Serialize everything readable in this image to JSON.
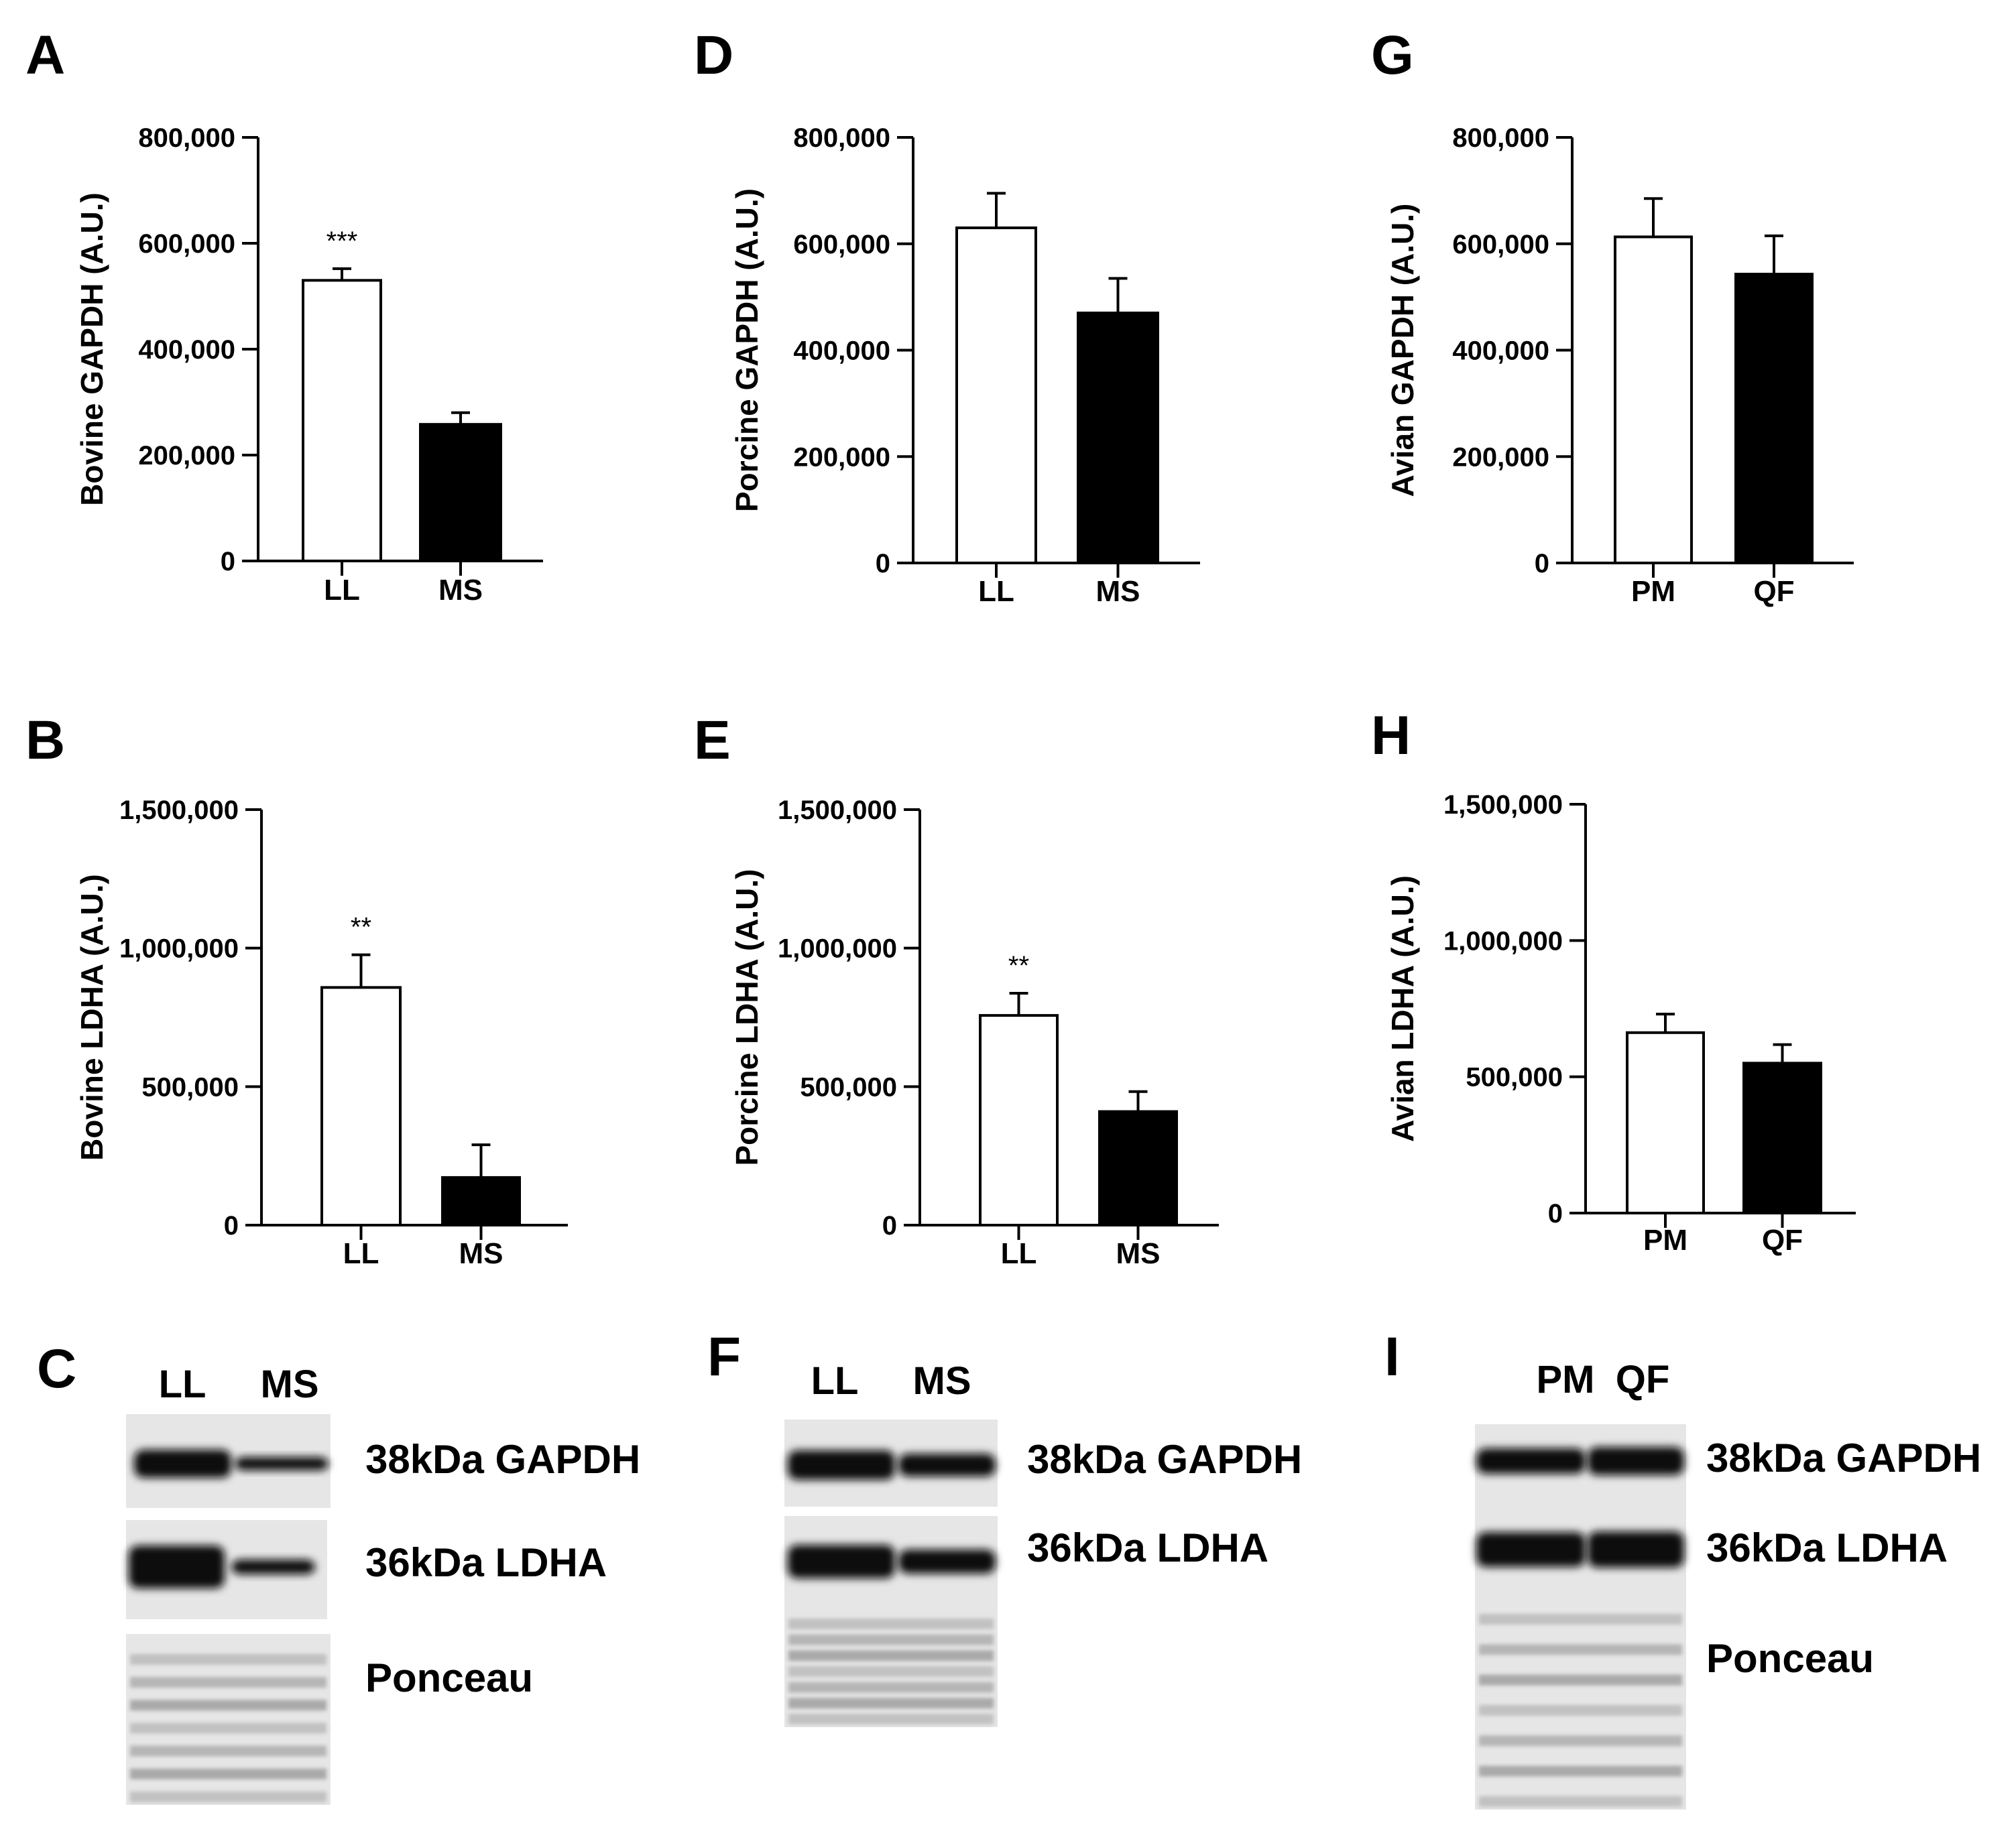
{
  "colors": {
    "control_bar": "#ffffff",
    "treatment_bar": "#000000",
    "axis": "#000000",
    "blot_bg": "#e6e6e6",
    "band": "#111111"
  },
  "chart_data": [
    {
      "panel": "A",
      "type": "bar",
      "categories": [
        "LL",
        "MS"
      ],
      "values": [
        530000,
        258000
      ],
      "errors": [
        22000,
        22000
      ],
      "significance": [
        "***",
        ""
      ],
      "ylabel": "Bovine GAPDH (A.U.)",
      "ylim": [
        0,
        800000
      ],
      "yticks": [
        0,
        200000,
        400000,
        600000,
        800000
      ],
      "ytick_labels": [
        "0",
        "200,000",
        "400,000",
        "600,000",
        "800,000"
      ]
    },
    {
      "panel": "D",
      "type": "bar",
      "categories": [
        "LL",
        "MS"
      ],
      "values": [
        630000,
        470000
      ],
      "errors": [
        65000,
        65000
      ],
      "significance": [
        "",
        ""
      ],
      "ylabel": "Porcine GAPDH (A.U.)",
      "ylim": [
        0,
        800000
      ],
      "yticks": [
        0,
        200000,
        400000,
        600000,
        800000
      ],
      "ytick_labels": [
        "0",
        "200,000",
        "400,000",
        "600,000",
        "800,000"
      ]
    },
    {
      "panel": "G",
      "type": "bar",
      "categories": [
        "PM",
        "QF"
      ],
      "values": [
        613000,
        543000
      ],
      "errors": [
        72000,
        72000
      ],
      "significance": [
        "",
        ""
      ],
      "ylabel": "Avian GAPDH (A.U.)",
      "ylim": [
        0,
        800000
      ],
      "yticks": [
        0,
        200000,
        400000,
        600000,
        800000
      ],
      "ytick_labels": [
        "0",
        "200,000",
        "400,000",
        "600,000",
        "800,000"
      ]
    },
    {
      "panel": "B",
      "type": "bar",
      "categories": [
        "LL",
        "MS"
      ],
      "values": [
        858000,
        172000
      ],
      "errors": [
        118000,
        118000
      ],
      "significance": [
        "**",
        ""
      ],
      "ylabel": "Bovine LDHA (A.U.)",
      "ylim": [
        0,
        1500000
      ],
      "yticks": [
        0,
        500000,
        1000000,
        1500000
      ],
      "ytick_labels": [
        "0",
        "500,000",
        "1,000,000",
        "1,500,000"
      ]
    },
    {
      "panel": "E",
      "type": "bar",
      "categories": [
        "LL",
        "MS"
      ],
      "values": [
        757000,
        410000
      ],
      "errors": [
        80000,
        72000
      ],
      "significance": [
        "**",
        ""
      ],
      "ylabel": "Porcine LDHA (A.U.)",
      "ylim": [
        0,
        1500000
      ],
      "yticks": [
        0,
        500000,
        1000000,
        1500000
      ],
      "ytick_labels": [
        "0",
        "500,000",
        "1,000,000",
        "1,500,000"
      ]
    },
    {
      "panel": "H",
      "type": "bar",
      "categories": [
        "PM",
        "QF"
      ],
      "values": [
        662000,
        550000
      ],
      "errors": [
        68000,
        68000
      ],
      "significance": [
        "",
        ""
      ],
      "ylabel": "Avian LDHA (A.U.)",
      "ylim": [
        0,
        1500000
      ],
      "yticks": [
        0,
        500000,
        1000000,
        1500000
      ],
      "ytick_labels": [
        "0",
        "500,000",
        "1,000,000",
        "1,500,000"
      ]
    }
  ],
  "blots": [
    {
      "panel": "C",
      "lanes": [
        "LL",
        "MS"
      ],
      "labels": [
        "38kDa GAPDH",
        "36kDa LDHA",
        "Ponceau"
      ]
    },
    {
      "panel": "F",
      "lanes": [
        "LL",
        "MS"
      ],
      "labels": [
        "38kDa GAPDH",
        "36kDa LDHA"
      ]
    },
    {
      "panel": "I",
      "lanes": [
        "PM",
        "QF"
      ],
      "labels": [
        "38kDa GAPDH",
        "36kDa LDHA",
        "Ponceau"
      ]
    }
  ]
}
